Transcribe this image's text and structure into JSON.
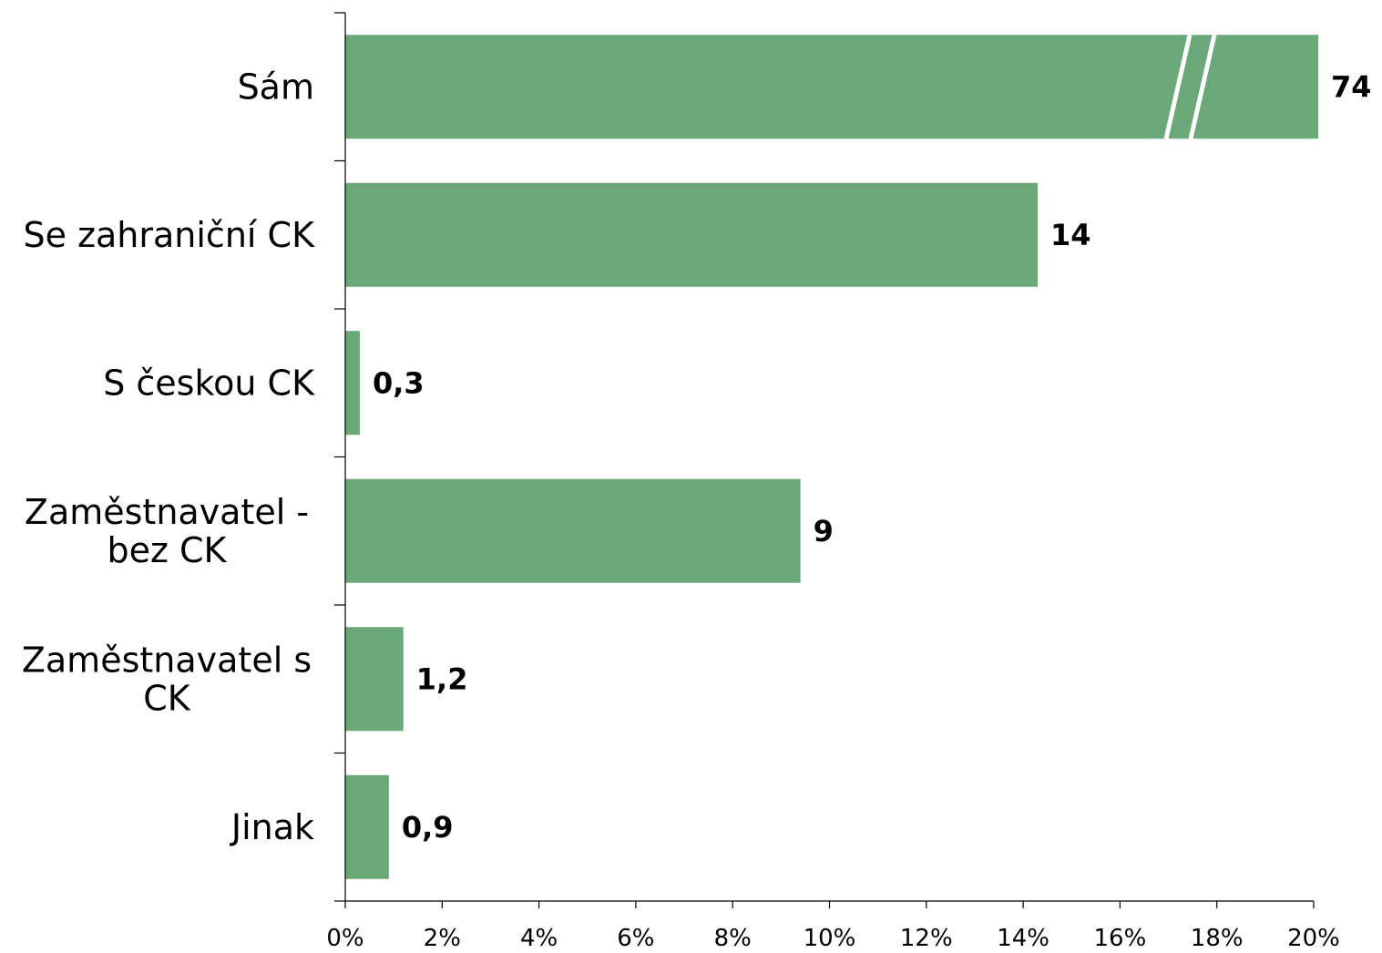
{
  "chart_data": {
    "type": "bar",
    "orientation": "horizontal",
    "categories": [
      [
        "Sám"
      ],
      [
        "Se zahraniční CK"
      ],
      [
        "S českou CK"
      ],
      [
        "Zaměstnavatel -",
        "bez CK"
      ],
      [
        "Zaměstnavatel s",
        "CK"
      ],
      [
        "Jinak"
      ]
    ],
    "values": [
      74,
      14.3,
      0.3,
      9.4,
      1.2,
      0.9
    ],
    "value_labels": [
      "74",
      "14",
      "0,3",
      "9",
      "1,2",
      "0,9"
    ],
    "axis_break_on": [
      0
    ],
    "x_ticks": [
      "0%",
      "2%",
      "4%",
      "6%",
      "8%",
      "10%",
      "12%",
      "14%",
      "16%",
      "18%",
      "20%"
    ],
    "xlim": [
      0,
      20
    ],
    "title": "",
    "xlabel": "",
    "ylabel": "",
    "grid": false,
    "legend": "none",
    "bar_color": "#6aa878",
    "break_mark_color": "#ffffff"
  }
}
